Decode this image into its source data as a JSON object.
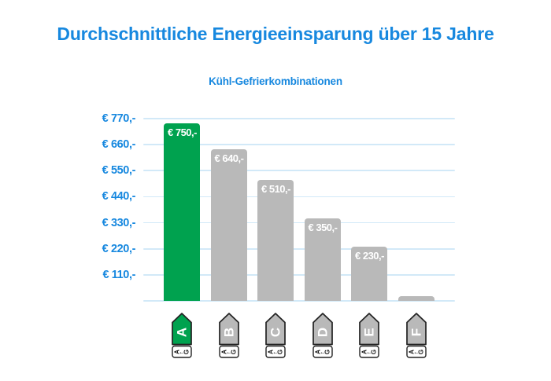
{
  "title": "Durchschnittliche Energieeinsparung über 15 Jahre",
  "subtitle": "Kühl-Gefrierkombinationen",
  "colors": {
    "accent_blue": "#1788df",
    "bar_green": "#00a24f",
    "bar_gray": "#b9b9b9",
    "grid_blue": "#d2e9f8",
    "tag_outline": "#222222",
    "bar_label_text": "#ffffff",
    "tag_letter_text": "#ffffff",
    "tag_scale_text": "#111111",
    "tag_scale_bg": "#ffffff"
  },
  "chart_data": {
    "type": "bar",
    "title": "Durchschnittliche Energieeinsparung über 15 Jahre",
    "subtitle": "Kühl-Gefrierkombinationen",
    "categories": [
      "A",
      "B",
      "C",
      "D",
      "E",
      "F"
    ],
    "values": [
      750,
      640,
      510,
      350,
      230,
      20
    ],
    "bar_labels": [
      "€ 750,-",
      "€ 640,-",
      "€ 510,-",
      "€ 350,-",
      "€ 230,-",
      ""
    ],
    "bar_color_keys": [
      "bar_green",
      "bar_gray",
      "bar_gray",
      "bar_gray",
      "bar_gray",
      "bar_gray"
    ],
    "xlabel": "",
    "ylabel": "",
    "ylim": [
      0,
      770
    ],
    "grid": true,
    "legend": "none",
    "y_ticks": {
      "values": [
        770,
        660,
        550,
        440,
        330,
        220,
        110
      ],
      "labels": [
        "€ 770,-",
        "€ 660,-",
        "€ 550,-",
        "€ 440,-",
        "€ 330,-",
        "€ 220,-",
        "€ 110,-"
      ]
    },
    "x_axis_tags": {
      "letters": [
        "A",
        "B",
        "C",
        "D",
        "E",
        "F"
      ],
      "tag_color_keys": [
        "bar_green",
        "bar_gray",
        "bar_gray",
        "bar_gray",
        "bar_gray",
        "bar_gray"
      ],
      "scale": {
        "from": "A",
        "arrow": "←",
        "to": "G"
      }
    }
  }
}
